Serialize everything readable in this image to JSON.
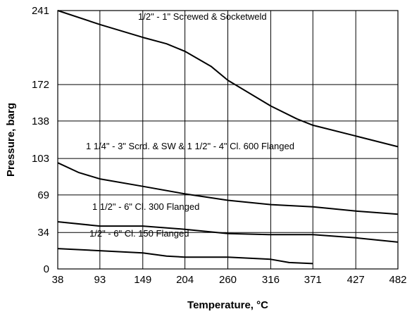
{
  "chart_data": {
    "type": "line",
    "xlabel": "Temperature, °C",
    "ylabel": "Pressure, barg",
    "xlim": [
      38,
      482
    ],
    "ylim": [
      0,
      241
    ],
    "x_ticks": [
      "38",
      "93",
      "149",
      "204",
      "260",
      "316",
      "371",
      "427",
      "482"
    ],
    "y_ticks": [
      "0",
      "34",
      "69",
      "103",
      "138",
      "172",
      "241"
    ],
    "x_tick_values": [
      38,
      93,
      149,
      204,
      260,
      316,
      371,
      427,
      482
    ],
    "y_tick_values": [
      0,
      34,
      69,
      103,
      138,
      172,
      241
    ],
    "grid": true,
    "series": [
      {
        "name": "1/2\" - 1\" Screwed & Socketweld",
        "x": [
          38,
          93,
          149,
          180,
          204,
          238,
          260,
          316,
          350,
          371,
          427,
          482
        ],
        "y": [
          241,
          228,
          216,
          210,
          203,
          189,
          176,
          152,
          140,
          134,
          124,
          114
        ]
      },
      {
        "name": "1 1/4\" - 3\" Scrd. & SW & 1 1/2\" - 4\" Cl. 600 Flanged",
        "x": [
          38,
          65,
          93,
          149,
          204,
          260,
          316,
          371,
          427,
          482
        ],
        "y": [
          99,
          90,
          84,
          77,
          70,
          64,
          60,
          58,
          54,
          51
        ]
      },
      {
        "name": "1 1/2\" - 6\" Cl. 300 Flanged",
        "x": [
          38,
          93,
          149,
          204,
          260,
          316,
          371,
          427,
          482
        ],
        "y": [
          44,
          40,
          40,
          37,
          33,
          32,
          32,
          29,
          25
        ]
      },
      {
        "name": "1/2\" - 6\" Cl. 150 Flanged",
        "x": [
          38,
          93,
          149,
          180,
          204,
          260,
          316,
          340,
          371
        ],
        "y": [
          19,
          17,
          15,
          12,
          11,
          11,
          9,
          6,
          5
        ]
      }
    ]
  }
}
